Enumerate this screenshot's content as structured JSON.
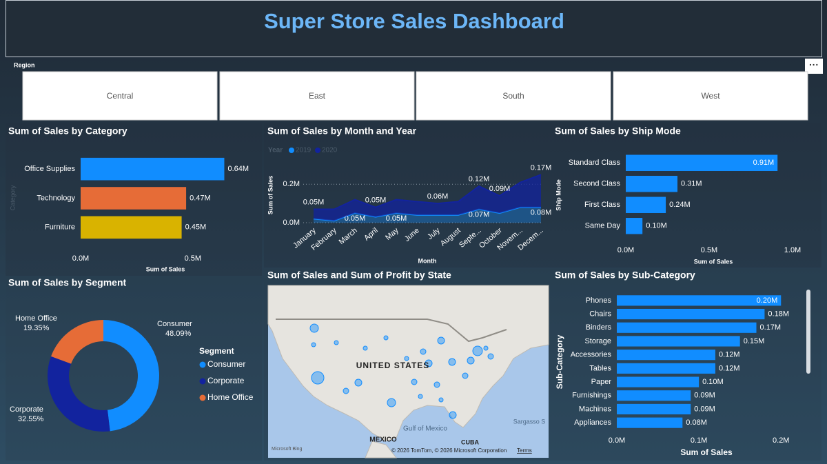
{
  "header": {
    "title": "Super Store Sales Dashboard"
  },
  "slicer": {
    "label": "Region",
    "options": [
      "Central",
      "East",
      "South",
      "West"
    ]
  },
  "chart_data": [
    {
      "type": "bar",
      "orientation": "horizontal",
      "title": "Sum of Sales by Category",
      "categories": [
        "Office Supplies",
        "Technology",
        "Furniture"
      ],
      "values": [
        640000,
        470000,
        450000
      ],
      "value_labels": [
        "0.64M",
        "0.47M",
        "0.45M"
      ],
      "colors": [
        "#118dff",
        "#e66c37",
        "#d9b300"
      ],
      "xlim": [
        0,
        700000
      ],
      "xticks": [
        {
          "value": 0,
          "label": "0.0M"
        },
        {
          "value": 500000,
          "label": "0.5M"
        }
      ],
      "x_label": "Sum of Sales",
      "y_label": "Category"
    },
    {
      "type": "area",
      "stacked": true,
      "title": "Sum of Sales by Month and Year",
      "categories": [
        "January",
        "February",
        "March",
        "April",
        "May",
        "June",
        "July",
        "August",
        "Septe...",
        "October",
        "Novem...",
        "Decem..."
      ],
      "legend_title": "Year",
      "series": [
        {
          "name": "2019",
          "color": "#118dff",
          "values": [
            20000,
            10000,
            50000,
            30000,
            50000,
            40000,
            40000,
            40000,
            70000,
            50000,
            80000,
            80000
          ],
          "value_labels": [
            null,
            null,
            "0.05M",
            null,
            "0.05M",
            null,
            null,
            null,
            "0.07M",
            null,
            null,
            "0.08M"
          ]
        },
        {
          "name": "2020",
          "color": "#12239e",
          "values": [
            50000,
            60000,
            70000,
            50000,
            70000,
            70000,
            60000,
            70000,
            120000,
            90000,
            130000,
            170000
          ],
          "value_labels": [
            "0.05M",
            null,
            null,
            "0.05M",
            null,
            null,
            "0.06M",
            null,
            "0.12M",
            "0.09M",
            null,
            "0.17M"
          ]
        }
      ],
      "ylim": [
        0,
        280000
      ],
      "yticks": [
        {
          "value": 0,
          "label": "0.0M"
        },
        {
          "value": 200000,
          "label": "0.2M"
        }
      ],
      "grid": true,
      "x_label": "Month",
      "y_label": "Sum of Sales"
    },
    {
      "type": "bar",
      "orientation": "horizontal",
      "title": "Sum of Sales by Ship Mode",
      "categories": [
        "Standard Class",
        "Second Class",
        "First Class",
        "Same Day"
      ],
      "values": [
        910000,
        310000,
        240000,
        100000
      ],
      "value_labels": [
        "0.91M",
        "0.31M",
        "0.24M",
        "0.10M"
      ],
      "color": "#118dff",
      "xlim": [
        0,
        1000000
      ],
      "xticks": [
        {
          "value": 0,
          "label": "0.0M"
        },
        {
          "value": 500000,
          "label": "0.5M"
        },
        {
          "value": 1000000,
          "label": "1.0M"
        }
      ],
      "x_label": "Sum of Sales",
      "y_label": "Ship Mode"
    },
    {
      "type": "donut",
      "title": "Sum of Sales by Segment",
      "categories": [
        "Consumer",
        "Corporate",
        "Home Office"
      ],
      "values": [
        48.09,
        32.55,
        19.35
      ],
      "value_labels": [
        "48.09%",
        "32.55%",
        "19.35%"
      ],
      "colors": [
        "#118dff",
        "#12239e",
        "#e66c37"
      ],
      "legend_title": "Segment"
    },
    {
      "type": "map",
      "title": "Sum of Sales and Sum of Profit by State",
      "labels": [
        "UNITED STATES",
        "Gulf of Mexico",
        "MEXICO",
        "CUBA",
        "Sargasso S"
      ],
      "attribution": "© 2026 TomTom, © 2026 Microsoft Corporation",
      "terms": "Terms",
      "provider": "Microsoft Bing"
    },
    {
      "type": "bar",
      "orientation": "horizontal",
      "title": "Sum of Sales by Sub-Category",
      "categories": [
        "Phones",
        "Chairs",
        "Binders",
        "Storage",
        "Accessories",
        "Tables",
        "Paper",
        "Furnishings",
        "Machines",
        "Appliances"
      ],
      "values": [
        200000,
        180000,
        170000,
        150000,
        120000,
        120000,
        100000,
        90000,
        90000,
        80000
      ],
      "value_labels": [
        "0.20M",
        "0.18M",
        "0.17M",
        "0.15M",
        "0.12M",
        "0.12M",
        "0.10M",
        "0.09M",
        "0.09M",
        "0.08M"
      ],
      "color": "#118dff",
      "xlim": [
        0,
        230000
      ],
      "xticks": [
        {
          "value": 0,
          "label": "0.0M"
        },
        {
          "value": 100000,
          "label": "0.1M"
        },
        {
          "value": 200000,
          "label": "0.2M"
        }
      ],
      "x_label": "Sum of Sales",
      "y_label": "Sub-Category"
    }
  ]
}
